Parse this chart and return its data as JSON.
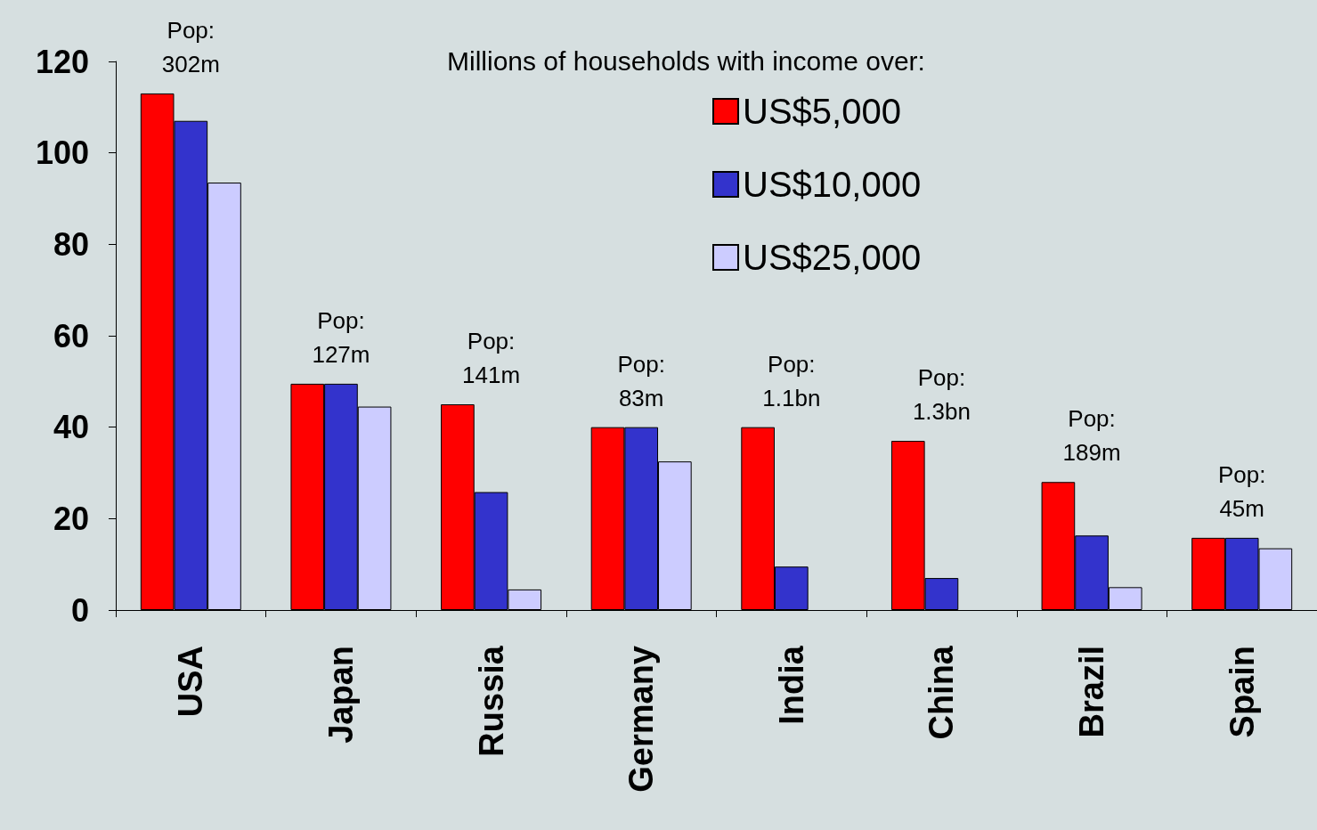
{
  "chart_data": {
    "type": "bar",
    "legend_title": "Millions of households with income over:",
    "categories": [
      "USA",
      "Japan",
      "Russia",
      "Germany",
      "India",
      "China",
      "Brazil",
      "Spain"
    ],
    "series": [
      {
        "name": "US$5,000",
        "color": "#ff0000",
        "values": [
          113,
          49.5,
          45,
          40,
          40,
          37,
          28,
          15.8
        ]
      },
      {
        "name": "US$10,000",
        "color": "#3333cc",
        "values": [
          107,
          49.5,
          25.8,
          40,
          9.5,
          7,
          16.3,
          15.8
        ]
      },
      {
        "name": "US$25,000",
        "color": "#ccccff",
        "values": [
          93.5,
          44.5,
          4.5,
          32.5,
          null,
          null,
          5,
          13.5
        ]
      }
    ],
    "ylim": [
      0,
      120
    ],
    "yticks": [
      0,
      20,
      40,
      60,
      80,
      100,
      120
    ],
    "legend": "top right",
    "annotations": [
      "Pop:\n302m",
      "Pop:\n127m",
      "Pop:\n141m",
      "Pop:\n83m",
      "Pop:\n1.1bn",
      "Pop:\n1.3bn",
      "Pop:\n189m",
      "Pop:\n45m"
    ]
  }
}
